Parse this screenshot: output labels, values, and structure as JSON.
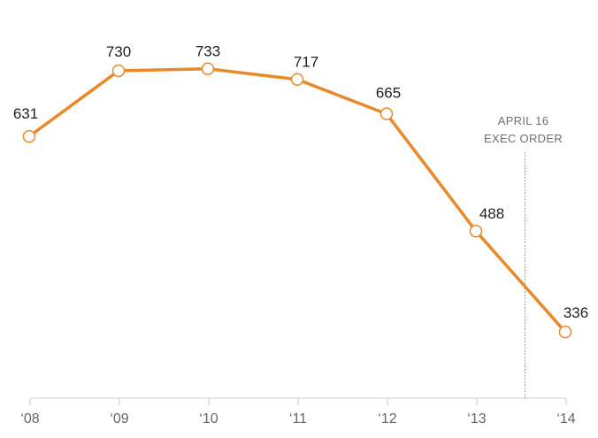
{
  "chart_data": {
    "type": "line",
    "title": "",
    "xlabel": "",
    "ylabel": "",
    "categories": [
      "‘08",
      "‘09",
      "‘10",
      "‘11",
      "‘12",
      "‘13",
      "‘14"
    ],
    "series": [
      {
        "values": [
          631,
          730,
          733,
          717,
          665,
          488,
          336
        ]
      }
    ],
    "data_labels": [
      "631",
      "730",
      "733",
      "717",
      "665",
      "488",
      "336"
    ],
    "ylim": [
      236,
      770
    ],
    "grid": false,
    "legend": "none",
    "annotation": {
      "x_position": 5.5,
      "lines": [
        "APRIL 16",
        "EXEC ORDER"
      ]
    },
    "colors": {
      "line": "#e8892a",
      "marker_fill": "#ffffff",
      "axis": "#cccccc",
      "annotation_line": "#888888"
    }
  }
}
